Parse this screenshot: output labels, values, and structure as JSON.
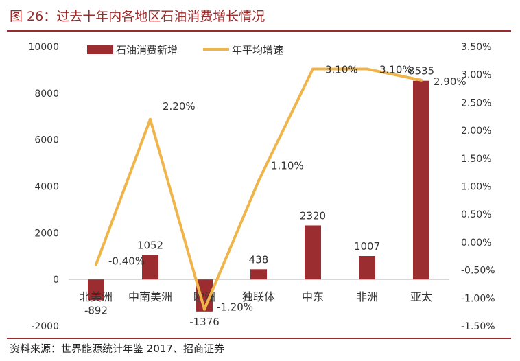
{
  "title": "图 26：过去十年内各地区石油消费增长情况",
  "source": "资料来源：世界能源统计年鉴 2017、招商证券",
  "chart_data": {
    "type": "bar+line",
    "categories": [
      "北美洲",
      "中南美洲",
      "欧洲",
      "独联体",
      "中东",
      "非洲",
      "亚太"
    ],
    "series": [
      {
        "name": "石油消费新增",
        "type": "bar",
        "axis": "left",
        "color": "#9b2d30",
        "values": [
          -892,
          1052,
          -1376,
          438,
          2320,
          1007,
          8535
        ],
        "labels": [
          "-892",
          "1052",
          "-1376",
          "438",
          "2320",
          "1007",
          "8535"
        ]
      },
      {
        "name": "年平均增速",
        "type": "line",
        "axis": "right",
        "color": "#f0b54a",
        "values": [
          -0.4,
          2.2,
          -1.2,
          1.1,
          3.1,
          3.1,
          2.9
        ],
        "labels": [
          "-0.40%",
          "2.20%",
          "-1.20%",
          "1.10%",
          "3.10%",
          "3.10%",
          "2.90%"
        ]
      }
    ],
    "y_left": {
      "min": -2000,
      "max": 10000,
      "ticks": [
        "10000",
        "8000",
        "6000",
        "4000",
        "2000",
        "0",
        "-2000"
      ]
    },
    "y_right": {
      "min": -1.5,
      "max": 3.5,
      "ticks": [
        "3.50%",
        "3.00%",
        "2.50%",
        "2.00%",
        "1.50%",
        "1.00%",
        "0.50%",
        "0.00%",
        "-0.50%",
        "-1.00%",
        "-1.50%"
      ]
    },
    "legend_position": "top",
    "grid": false
  }
}
